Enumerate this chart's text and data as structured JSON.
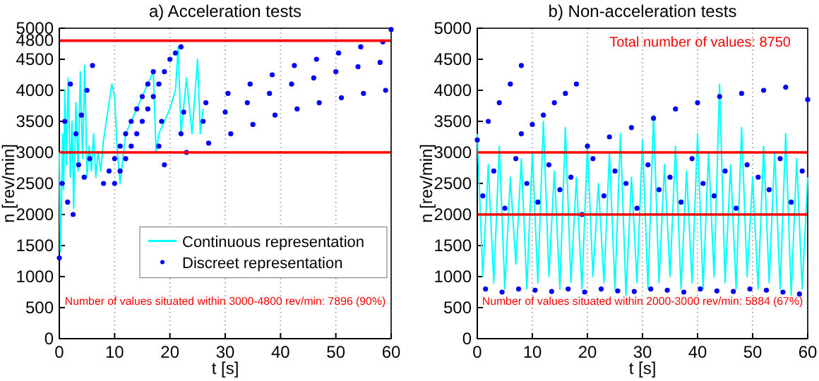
{
  "chart_data": [
    {
      "type": "line",
      "title": "a) Acceleration tests",
      "xlabel": "t [s]",
      "ylabel": "n [rev/min]",
      "xlim": [
        0,
        60
      ],
      "xticks": [
        0,
        10,
        20,
        30,
        40,
        50,
        60
      ],
      "ylim": [
        0,
        5000
      ],
      "yticks": [
        0,
        500,
        1000,
        1500,
        2000,
        2500,
        3000,
        3500,
        4000,
        4500,
        4800,
        5000
      ],
      "grid": "x",
      "legend": "right",
      "line_style": "solid",
      "ref_lines": [
        {
          "axis": "y",
          "value": 3000,
          "color": "#ff0000"
        },
        {
          "axis": "y",
          "value": 4800,
          "color": "#ff0000"
        }
      ],
      "annotations": [
        "Number of values situated within 3000-4800 rev/min: 7896 (90%)"
      ],
      "series": [
        {
          "name": "Continuous representation",
          "color": "#00ffff",
          "x": [
            0,
            0.2,
            0.4,
            0.6,
            0.8,
            1,
            1.3,
            1.6,
            2,
            2.3,
            2.6,
            3,
            3.4,
            3.8,
            4.2,
            4.6,
            5,
            5.4,
            5.8,
            6.2,
            6.6,
            7,
            7.5,
            8,
            8.5,
            9,
            9.5,
            10,
            10.5,
            11,
            11.5,
            12,
            13,
            14,
            15,
            16,
            17,
            17.5,
            18,
            19,
            20,
            21,
            21.5,
            22,
            23,
            24,
            25,
            25.5,
            26
          ],
          "values": [
            3000,
            1400,
            2200,
            3300,
            2400,
            4000,
            2800,
            4200,
            2600,
            3500,
            2100,
            3800,
            2700,
            4300,
            2900,
            4400,
            2600,
            3100,
            2700,
            3300,
            2600,
            3000,
            2700,
            3200,
            3500,
            3800,
            4100,
            3900,
            3000,
            2500,
            2900,
            3300,
            3500,
            3700,
            3900,
            4100,
            4300,
            3000,
            3300,
            3500,
            3700,
            4000,
            4700,
            3300,
            4200,
            3300,
            4500,
            3300,
            3700
          ]
        },
        {
          "name": "Discreet representation",
          "type": "scatter",
          "marker": "circle",
          "color": "#0000ff",
          "x": [
            19,
            23,
            27,
            31,
            35,
            39,
            43,
            47,
            51,
            55,
            59,
            18,
            22,
            26,
            30,
            34,
            38,
            42,
            46,
            50,
            54,
            58,
            18.5,
            22.5,
            26.5,
            30.5,
            34.5,
            38.5,
            42.5,
            46.5,
            50.5,
            54.5,
            58.5,
            60,
            8,
            9,
            10,
            11,
            12,
            13,
            14,
            15,
            16,
            17,
            10,
            11,
            12,
            13,
            14,
            15,
            16,
            17,
            18,
            19,
            20,
            21,
            22,
            0,
            0.5,
            1,
            1.5,
            2,
            2.5,
            3,
            3.5,
            4,
            4.5,
            5,
            5.5,
            6
          ],
          "values": [
            2800,
            3000,
            3150,
            3300,
            3450,
            3600,
            3700,
            3800,
            3880,
            3950,
            4000,
            3100,
            3300,
            3500,
            3650,
            3800,
            3950,
            4100,
            4200,
            4300,
            4380,
            4450,
            3500,
            3650,
            3800,
            3950,
            4100,
            4250,
            4400,
            4500,
            4600,
            4700,
            4780,
            4980,
            2500,
            2700,
            2900,
            3100,
            3300,
            3500,
            3700,
            3900,
            4100,
            4300,
            2500,
            2700,
            2900,
            3100,
            3300,
            3500,
            3700,
            3900,
            4100,
            4300,
            4500,
            4600,
            4700,
            1300,
            2500,
            3500,
            2200,
            4100,
            2000,
            3300,
            2800,
            3600,
            2600,
            4000,
            2900,
            4400
          ]
        }
      ]
    },
    {
      "type": "line",
      "title": "b) Non-acceleration tests",
      "xlabel": "t [s]",
      "ylabel": "n [rev/min]",
      "xlim": [
        0,
        60
      ],
      "xticks": [
        0,
        10,
        20,
        30,
        40,
        50,
        60
      ],
      "ylim": [
        0,
        5000
      ],
      "yticks": [
        0,
        500,
        1000,
        1500,
        2000,
        2500,
        3000,
        3500,
        4000,
        4500,
        5000
      ],
      "grid": "x",
      "line_style": "solid",
      "ref_lines": [
        {
          "axis": "y",
          "value": 2000,
          "color": "#ff0000"
        },
        {
          "axis": "y",
          "value": 3000,
          "color": "#ff0000"
        }
      ],
      "annotations": [
        "Total number of values: 8750",
        "Number of values situated within 2000-3000 rev/min: 5884 (67%)"
      ],
      "series": [
        {
          "color": "#00ffff",
          "x": [
            0,
            1,
            2,
            3,
            4,
            5,
            6,
            7,
            8,
            9,
            10,
            11,
            12,
            13,
            14,
            15,
            16,
            17,
            18,
            19,
            20,
            21,
            22,
            23,
            24,
            25,
            26,
            27,
            28,
            29,
            30,
            31,
            32,
            33,
            34,
            35,
            36,
            37,
            38,
            39,
            40,
            41,
            42,
            43,
            44,
            45,
            46,
            47,
            48,
            49,
            50,
            51,
            52,
            53,
            54,
            55,
            56,
            57,
            58,
            59,
            60
          ],
          "values": [
            3300,
            1000,
            2800,
            900,
            3100,
            800,
            2600,
            1200,
            2900,
            800,
            3000,
            900,
            3500,
            1000,
            2700,
            800,
            3400,
            900,
            2600,
            800,
            3100,
            1000,
            2500,
            900,
            3000,
            800,
            3300,
            700,
            2600,
            900,
            3200,
            800,
            3600,
            900,
            2800,
            1000,
            3100,
            800,
            2700,
            900,
            3300,
            800,
            3000,
            1000,
            4100,
            900,
            2800,
            800,
            3400,
            1000,
            2600,
            800,
            3100,
            900,
            3000,
            800,
            3300,
            700,
            2900,
            800,
            2600
          ]
        },
        {
          "type": "scatter",
          "marker": "circle",
          "color": "#0000ff",
          "x": [
            0,
            2,
            4,
            6,
            8,
            8,
            10,
            12,
            14,
            16,
            18,
            20,
            24,
            28,
            32,
            36,
            40,
            44,
            48,
            52,
            56,
            60,
            1,
            3,
            5,
            7,
            9,
            11,
            13,
            15,
            17,
            19,
            21,
            23,
            25,
            27,
            29,
            31,
            33,
            35,
            37,
            39,
            41,
            43,
            45,
            47,
            49,
            51,
            53,
            55,
            57,
            59,
            1.5,
            4.5,
            7.5,
            10.5,
            13.5,
            16.5,
            19.5,
            22.5,
            25.5,
            28.5,
            31.5,
            34.5,
            37.5,
            40.5,
            43.5,
            46.5,
            49.5,
            52.5,
            55.5,
            58.5
          ],
          "values": [
            3200,
            3500,
            3800,
            4100,
            4400,
            3300,
            3450,
            3600,
            3800,
            3950,
            4100,
            3100,
            3250,
            3400,
            3550,
            3700,
            3800,
            3900,
            3950,
            4000,
            4050,
            3850,
            2300,
            2700,
            2100,
            2900,
            2500,
            2200,
            2800,
            2400,
            2600,
            2000,
            2900,
            2300,
            2700,
            2500,
            2100,
            2800,
            2400,
            2600,
            2200,
            2900,
            2500,
            2300,
            2700,
            2100,
            2800,
            2600,
            2400,
            2900,
            2200,
            2700,
            800,
            750,
            800,
            780,
            760,
            800,
            750,
            800,
            770,
            760,
            800,
            780,
            750,
            800,
            770,
            760,
            800,
            780,
            750,
            720
          ]
        }
      ]
    }
  ]
}
